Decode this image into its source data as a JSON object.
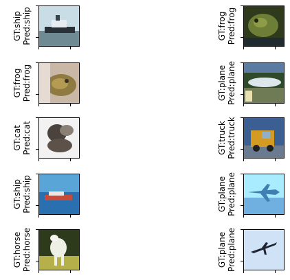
{
  "panels": [
    {
      "gt": "GT:ship",
      "pred": "Pred:ship",
      "image": "ship-photo"
    },
    {
      "gt": "GT:frog",
      "pred": "Pred:frog",
      "image": "frog-photo"
    },
    {
      "gt": "GT:frog",
      "pred": "Pred:frog",
      "image": "frog-photo"
    },
    {
      "gt": "GT:plane",
      "pred": "Pred:plane",
      "image": "plane-photo"
    },
    {
      "gt": "GT:cat",
      "pred": "Pred:cat",
      "image": "cat-photo"
    },
    {
      "gt": "GT:truck",
      "pred": "Pred:truck",
      "image": "truck-photo"
    },
    {
      "gt": "GT:ship",
      "pred": "Pred:ship",
      "image": "ship-photo"
    },
    {
      "gt": "GT:plane",
      "pred": "Pred:plane",
      "image": "plane-photo"
    },
    {
      "gt": "GT:horse",
      "pred": "Pred:horse",
      "image": "horse-photo"
    },
    {
      "gt": "GT:plane",
      "pred": "Pred:plane",
      "image": "plane-photo"
    }
  ]
}
